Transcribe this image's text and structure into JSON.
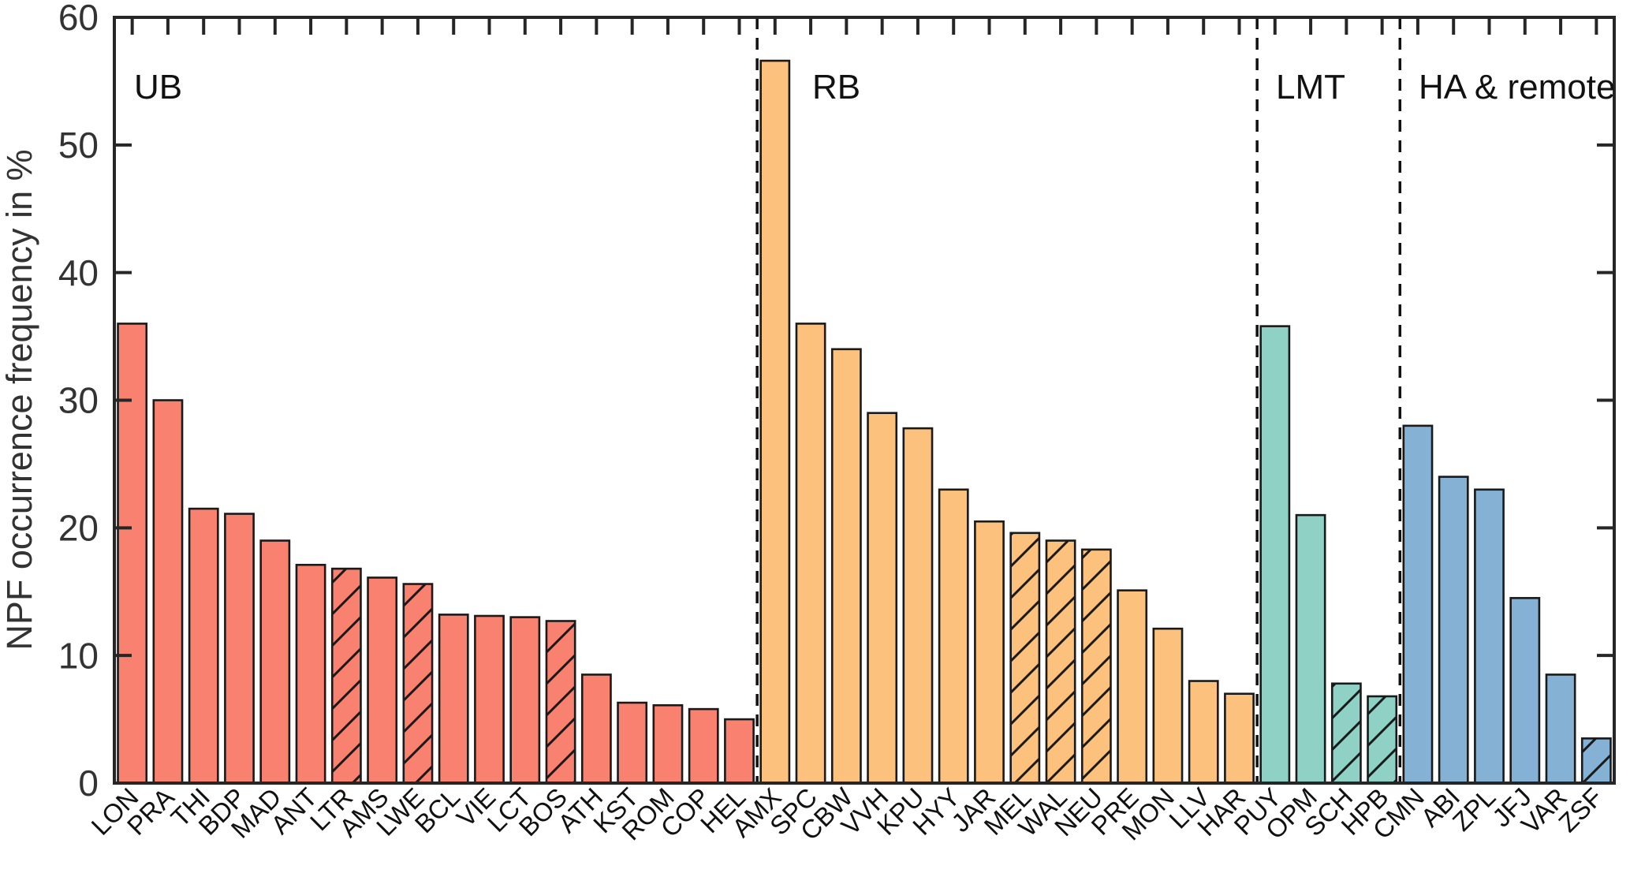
{
  "chart_data": {
    "type": "bar",
    "title": "",
    "ylabel": "NPF occurrence frequency in %",
    "xlabel": "",
    "ylim": [
      0,
      60
    ],
    "yticks": [
      0,
      10,
      20,
      30,
      40,
      50,
      60
    ],
    "grid": false,
    "legend_position": "none",
    "bar_edge_color": "#1a1a1a",
    "separator_style": "dashed",
    "groups": [
      {
        "label": "UB",
        "color": "#F98170",
        "stations": [
          {
            "code": "LON",
            "value": 36.0,
            "hatched": false
          },
          {
            "code": "PRA",
            "value": 30.0,
            "hatched": false
          },
          {
            "code": "THI",
            "value": 21.5,
            "hatched": false
          },
          {
            "code": "BDP",
            "value": 21.1,
            "hatched": false
          },
          {
            "code": "MAD",
            "value": 19.0,
            "hatched": false
          },
          {
            "code": "ANT",
            "value": 17.1,
            "hatched": false
          },
          {
            "code": "LTR",
            "value": 16.8,
            "hatched": true
          },
          {
            "code": "AMS",
            "value": 16.1,
            "hatched": false
          },
          {
            "code": "LWE",
            "value": 15.6,
            "hatched": true
          },
          {
            "code": "BCL",
            "value": 13.2,
            "hatched": false
          },
          {
            "code": "VIE",
            "value": 13.1,
            "hatched": false
          },
          {
            "code": "LCT",
            "value": 13.0,
            "hatched": false
          },
          {
            "code": "BOS",
            "value": 12.7,
            "hatched": true
          },
          {
            "code": "ATH",
            "value": 8.5,
            "hatched": false
          },
          {
            "code": "KST",
            "value": 6.3,
            "hatched": false
          },
          {
            "code": "ROM",
            "value": 6.1,
            "hatched": false
          },
          {
            "code": "COP",
            "value": 5.8,
            "hatched": false
          },
          {
            "code": "HEL",
            "value": 5.0,
            "hatched": false
          }
        ]
      },
      {
        "label": "RB",
        "color": "#FCC17C",
        "stations": [
          {
            "code": "AMX",
            "value": 56.6,
            "hatched": false
          },
          {
            "code": "SPC",
            "value": 36.0,
            "hatched": false
          },
          {
            "code": "CBW",
            "value": 34.0,
            "hatched": false
          },
          {
            "code": "VVH",
            "value": 29.0,
            "hatched": false
          },
          {
            "code": "KPU",
            "value": 27.8,
            "hatched": false
          },
          {
            "code": "HYY",
            "value": 23.0,
            "hatched": false
          },
          {
            "code": "JAR",
            "value": 20.5,
            "hatched": false
          },
          {
            "code": "MEL",
            "value": 19.6,
            "hatched": true
          },
          {
            "code": "WAL",
            "value": 19.0,
            "hatched": true
          },
          {
            "code": "NEU",
            "value": 18.3,
            "hatched": true
          },
          {
            "code": "PRE",
            "value": 15.1,
            "hatched": false
          },
          {
            "code": "MON",
            "value": 12.1,
            "hatched": false
          },
          {
            "code": "LLV",
            "value": 8.0,
            "hatched": false
          },
          {
            "code": "HAR",
            "value": 7.0,
            "hatched": false
          }
        ]
      },
      {
        "label": "LMT",
        "color": "#8FD1C5",
        "stations": [
          {
            "code": "PUY",
            "value": 35.8,
            "hatched": false
          },
          {
            "code": "OPM",
            "value": 21.0,
            "hatched": false
          },
          {
            "code": "SCH",
            "value": 7.8,
            "hatched": true
          },
          {
            "code": "HPB",
            "value": 6.8,
            "hatched": true
          }
        ]
      },
      {
        "label": "HA & remote",
        "color": "#84B1D4",
        "stations": [
          {
            "code": "CMN",
            "value": 28.0,
            "hatched": false
          },
          {
            "code": "ABI",
            "value": 24.0,
            "hatched": false
          },
          {
            "code": "ZPL",
            "value": 23.0,
            "hatched": false
          },
          {
            "code": "JFJ",
            "value": 14.5,
            "hatched": false
          },
          {
            "code": "VAR",
            "value": 8.5,
            "hatched": false
          },
          {
            "code": "ZSF",
            "value": 3.5,
            "hatched": true
          }
        ]
      }
    ]
  }
}
